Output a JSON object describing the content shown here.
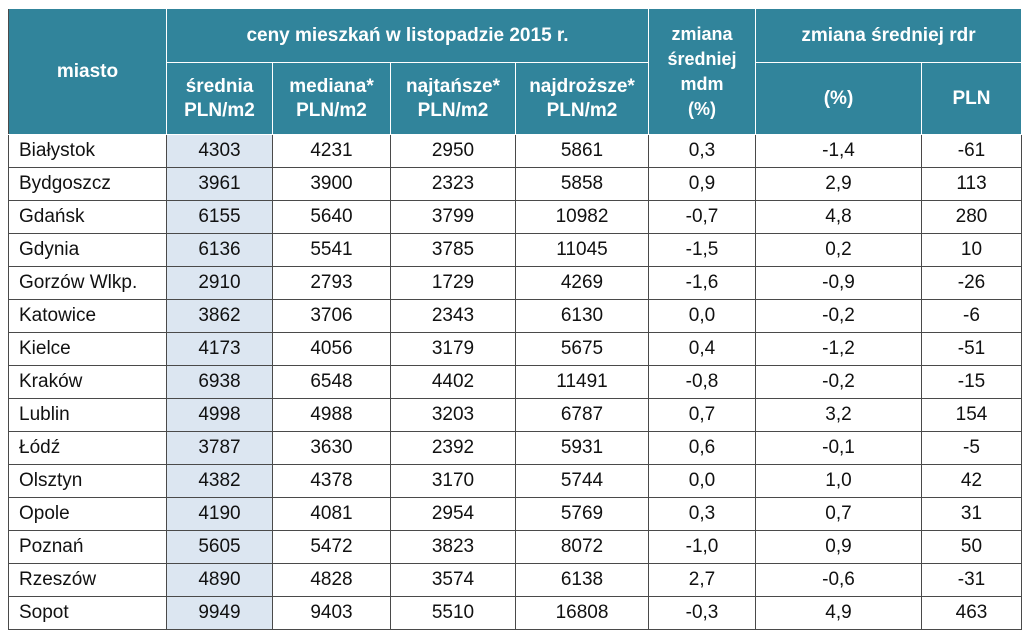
{
  "chart_data": {
    "type": "table",
    "header": {
      "city": "miasto",
      "group_prices": "ceny mieszkań w listopadzie 2015 r.",
      "change_mdm": [
        "zmiana",
        "średniej",
        "mdm",
        "(%)"
      ],
      "group_rdr": "zmiana średniej rdr",
      "columns": [
        [
          "średnia",
          "PLN/m2"
        ],
        [
          "mediana*",
          "PLN/m2"
        ],
        [
          "najtańsze*",
          "PLN/m2"
        ],
        [
          "najdroższe*",
          "PLN/m2"
        ]
      ],
      "rdr_cols": [
        "(%)",
        "PLN"
      ]
    },
    "rows": [
      [
        "Białystok",
        "4303",
        "4231",
        "2950",
        "5861",
        "0,3",
        "-1,4",
        "-61"
      ],
      [
        "Bydgoszcz",
        "3961",
        "3900",
        "2323",
        "5858",
        "0,9",
        "2,9",
        "113"
      ],
      [
        "Gdańsk",
        "6155",
        "5640",
        "3799",
        "10982",
        "-0,7",
        "4,8",
        "280"
      ],
      [
        "Gdynia",
        "6136",
        "5541",
        "3785",
        "11045",
        "-1,5",
        "0,2",
        "10"
      ],
      [
        "Gorzów Wlkp.",
        "2910",
        "2793",
        "1729",
        "4269",
        "-1,6",
        "-0,9",
        "-26"
      ],
      [
        "Katowice",
        "3862",
        "3706",
        "2343",
        "6130",
        "0,0",
        "-0,2",
        "-6"
      ],
      [
        "Kielce",
        "4173",
        "4056",
        "3179",
        "5675",
        "0,4",
        "-1,2",
        "-51"
      ],
      [
        "Kraków",
        "6938",
        "6548",
        "4402",
        "11491",
        "-0,8",
        "-0,2",
        "-15"
      ],
      [
        "Lublin",
        "4998",
        "4988",
        "3203",
        "6787",
        "0,7",
        "3,2",
        "154"
      ],
      [
        "Łódź",
        "3787",
        "3630",
        "2392",
        "5931",
        "0,6",
        "-0,1",
        "-5"
      ],
      [
        "Olsztyn",
        "4382",
        "4378",
        "3170",
        "5744",
        "0,0",
        "1,0",
        "42"
      ],
      [
        "Opole",
        "4190",
        "4081",
        "2954",
        "5769",
        "0,3",
        "0,7",
        "31"
      ],
      [
        "Poznań",
        "5605",
        "5472",
        "3823",
        "8072",
        "-1,0",
        "0,9",
        "50"
      ],
      [
        "Rzeszów",
        "4890",
        "4828",
        "3574",
        "6138",
        "2,7",
        "-0,6",
        "-31"
      ],
      [
        "Sopot",
        "9949",
        "9403",
        "5510",
        "16808",
        "-0,3",
        "4,9",
        "463"
      ]
    ],
    "colors": {
      "header_bg": "#31849b",
      "header_text": "#ffffff",
      "highlight_col": "#dce6f1"
    }
  }
}
